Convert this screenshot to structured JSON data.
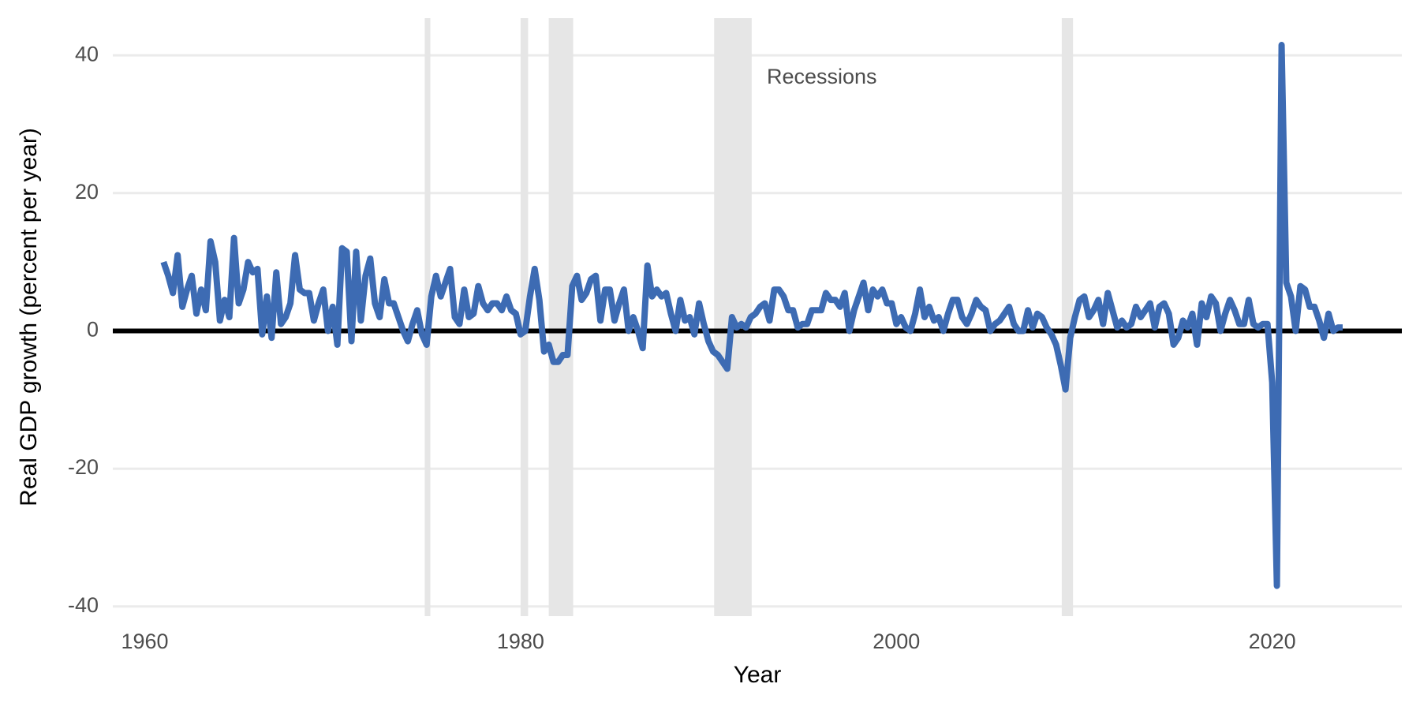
{
  "chart_data": {
    "type": "line",
    "xlabel": "Year",
    "ylabel": "Real GDP growth (percent per year)",
    "annotation": "Recessions",
    "xlim": [
      1958.3,
      2026.9
    ],
    "ylim": [
      -41.4,
      45.4
    ],
    "xticks": [
      1960,
      1980,
      2000,
      2020
    ],
    "yticks": [
      -40,
      -20,
      0,
      20,
      40
    ],
    "grid": true,
    "reference_line": 0,
    "recessions": [
      {
        "start": 1974.9,
        "end": 1975.2
      },
      {
        "start": 1980.0,
        "end": 1980.4
      },
      {
        "start": 1981.5,
        "end": 1982.8
      },
      {
        "start": 1990.3,
        "end": 1992.3
      },
      {
        "start": 2008.8,
        "end": 2009.4
      }
    ],
    "recession_color": "#e6e6e6",
    "x": [
      1961,
      1961.25,
      1961.5,
      1961.75,
      1962,
      1962.25,
      1962.5,
      1962.75,
      1963,
      1963.25,
      1963.5,
      1963.75,
      1964,
      1964.25,
      1964.5,
      1964.75,
      1965,
      1965.25,
      1965.5,
      1965.75,
      1966,
      1966.25,
      1966.5,
      1966.75,
      1967,
      1967.25,
      1967.5,
      1967.75,
      1968,
      1968.25,
      1968.5,
      1968.75,
      1969,
      1969.25,
      1969.5,
      1969.75,
      1970,
      1970.25,
      1970.5,
      1970.75,
      1971,
      1971.25,
      1971.5,
      1971.75,
      1972,
      1972.25,
      1972.5,
      1972.75,
      1973,
      1973.25,
      1973.5,
      1973.75,
      1974,
      1974.25,
      1974.5,
      1974.75,
      1975,
      1975.25,
      1975.5,
      1975.75,
      1976,
      1976.25,
      1976.5,
      1976.75,
      1977,
      1977.25,
      1977.5,
      1977.75,
      1978,
      1978.25,
      1978.5,
      1978.75,
      1979,
      1979.25,
      1979.5,
      1979.75,
      1980,
      1980.25,
      1980.5,
      1980.75,
      1981,
      1981.25,
      1981.5,
      1981.75,
      1982,
      1982.25,
      1982.5,
      1982.75,
      1983,
      1983.25,
      1983.5,
      1983.75,
      1984,
      1984.25,
      1984.5,
      1984.75,
      1985,
      1985.25,
      1985.5,
      1985.75,
      1986,
      1986.25,
      1986.5,
      1986.75,
      1987,
      1987.25,
      1987.5,
      1987.75,
      1988,
      1988.25,
      1988.5,
      1988.75,
      1989,
      1989.25,
      1989.5,
      1989.75,
      1990,
      1990.25,
      1990.5,
      1990.75,
      1991,
      1991.25,
      1991.5,
      1991.75,
      1992,
      1992.25,
      1992.5,
      1992.75,
      1993,
      1993.25,
      1993.5,
      1993.75,
      1994,
      1994.25,
      1994.5,
      1994.75,
      1995,
      1995.25,
      1995.5,
      1995.75,
      1996,
      1996.25,
      1996.5,
      1996.75,
      1997,
      1997.25,
      1997.5,
      1997.75,
      1998,
      1998.25,
      1998.5,
      1998.75,
      1999,
      1999.25,
      1999.5,
      1999.75,
      2000,
      2000.25,
      2000.5,
      2000.75,
      2001,
      2001.25,
      2001.5,
      2001.75,
      2002,
      2002.25,
      2002.5,
      2002.75,
      2003,
      2003.25,
      2003.5,
      2003.75,
      2004,
      2004.25,
      2004.5,
      2004.75,
      2005,
      2005.25,
      2005.5,
      2005.75,
      2006,
      2006.25,
      2006.5,
      2006.75,
      2007,
      2007.25,
      2007.5,
      2007.75,
      2008,
      2008.25,
      2008.5,
      2008.75,
      2009,
      2009.25,
      2009.5,
      2009.75,
      2010,
      2010.25,
      2010.5,
      2010.75,
      2011,
      2011.25,
      2011.5,
      2011.75,
      2012,
      2012.25,
      2012.5,
      2012.75,
      2013,
      2013.25,
      2013.5,
      2013.75,
      2014,
      2014.25,
      2014.5,
      2014.75,
      2015,
      2015.25,
      2015.5,
      2015.75,
      2016,
      2016.25,
      2016.5,
      2016.75,
      2017,
      2017.25,
      2017.5,
      2017.75,
      2018,
      2018.25,
      2018.5,
      2018.75,
      2019,
      2019.25,
      2019.5,
      2019.75,
      2020,
      2020.25,
      2020.5,
      2020.75,
      2021,
      2021.25,
      2021.5,
      2021.75,
      2022,
      2022.25,
      2022.5,
      2022.75,
      2023,
      2023.25,
      2023.5,
      2023.75
    ],
    "series": [
      {
        "name": "Real GDP growth",
        "color": "#3d6bb3",
        "values": [
          10,
          8,
          5.5,
          11,
          3.5,
          6,
          8,
          2.5,
          6,
          3,
          13,
          10,
          1.5,
          4.5,
          2,
          13.5,
          4,
          6,
          10,
          8.5,
          9,
          -0.5,
          5,
          -1,
          8.5,
          1,
          2,
          4,
          11,
          6,
          5.5,
          5.5,
          1.5,
          4,
          6,
          0,
          3.5,
          -2,
          12,
          11.5,
          -1.5,
          11.5,
          1.5,
          8,
          10.5,
          4,
          2,
          7.5,
          4,
          4,
          2,
          0,
          -1.5,
          1,
          3,
          -0.5,
          -2,
          5,
          8,
          5,
          7,
          9,
          2,
          1,
          6,
          2,
          2.5,
          6.5,
          4,
          3,
          4,
          4,
          3,
          5,
          3,
          2.5,
          -0.5,
          0,
          5,
          9,
          4.5,
          -3,
          -2,
          -4.5,
          -4.5,
          -3.5,
          -3.5,
          6.5,
          8,
          4.5,
          5.5,
          7.5,
          8,
          1.5,
          6,
          6,
          1.5,
          4,
          6,
          0,
          2,
          0,
          -2.5,
          9.5,
          5,
          6,
          5,
          5.5,
          2.5,
          0,
          4.5,
          1.5,
          2,
          -0.5,
          4,
          1,
          -1.5,
          -3,
          -3.5,
          -4.5,
          -5.5,
          2,
          0.5,
          1,
          0.5,
          2,
          2.5,
          3.5,
          4,
          1.5,
          6,
          6,
          5,
          3,
          3,
          0.5,
          1,
          1,
          3,
          3,
          3,
          5.5,
          4.5,
          4.5,
          3.5,
          5.5,
          0,
          3,
          5,
          7,
          3,
          6,
          5,
          6,
          4,
          4,
          1,
          2,
          0.5,
          0,
          2.5,
          6,
          2,
          3.5,
          1.5,
          2,
          0,
          2.5,
          4.5,
          4.5,
          2,
          1,
          2.5,
          4.5,
          3.5,
          3,
          0,
          1,
          1.5,
          2.5,
          3.5,
          1,
          0,
          0,
          3,
          0.5,
          2.5,
          2,
          0.5,
          -0.5,
          -2,
          -5,
          -8.5,
          -1,
          2,
          4.5,
          5,
          2,
          3,
          4.5,
          1,
          5.5,
          3,
          0.5,
          1.5,
          0.5,
          1,
          3.5,
          2,
          3,
          4,
          0.5,
          3.5,
          4,
          2.5,
          -2,
          -1,
          1.5,
          0.5,
          2.5,
          -2,
          4,
          2,
          5,
          4,
          0,
          2.5,
          4.5,
          3,
          1,
          1,
          4.5,
          1,
          0.5,
          1,
          1,
          -7.5,
          -37,
          41.5,
          7,
          5,
          0,
          6.5,
          6,
          3.5,
          3.5,
          1.5,
          -1,
          2.5,
          0,
          0.5,
          0.5
        ]
      }
    ]
  }
}
